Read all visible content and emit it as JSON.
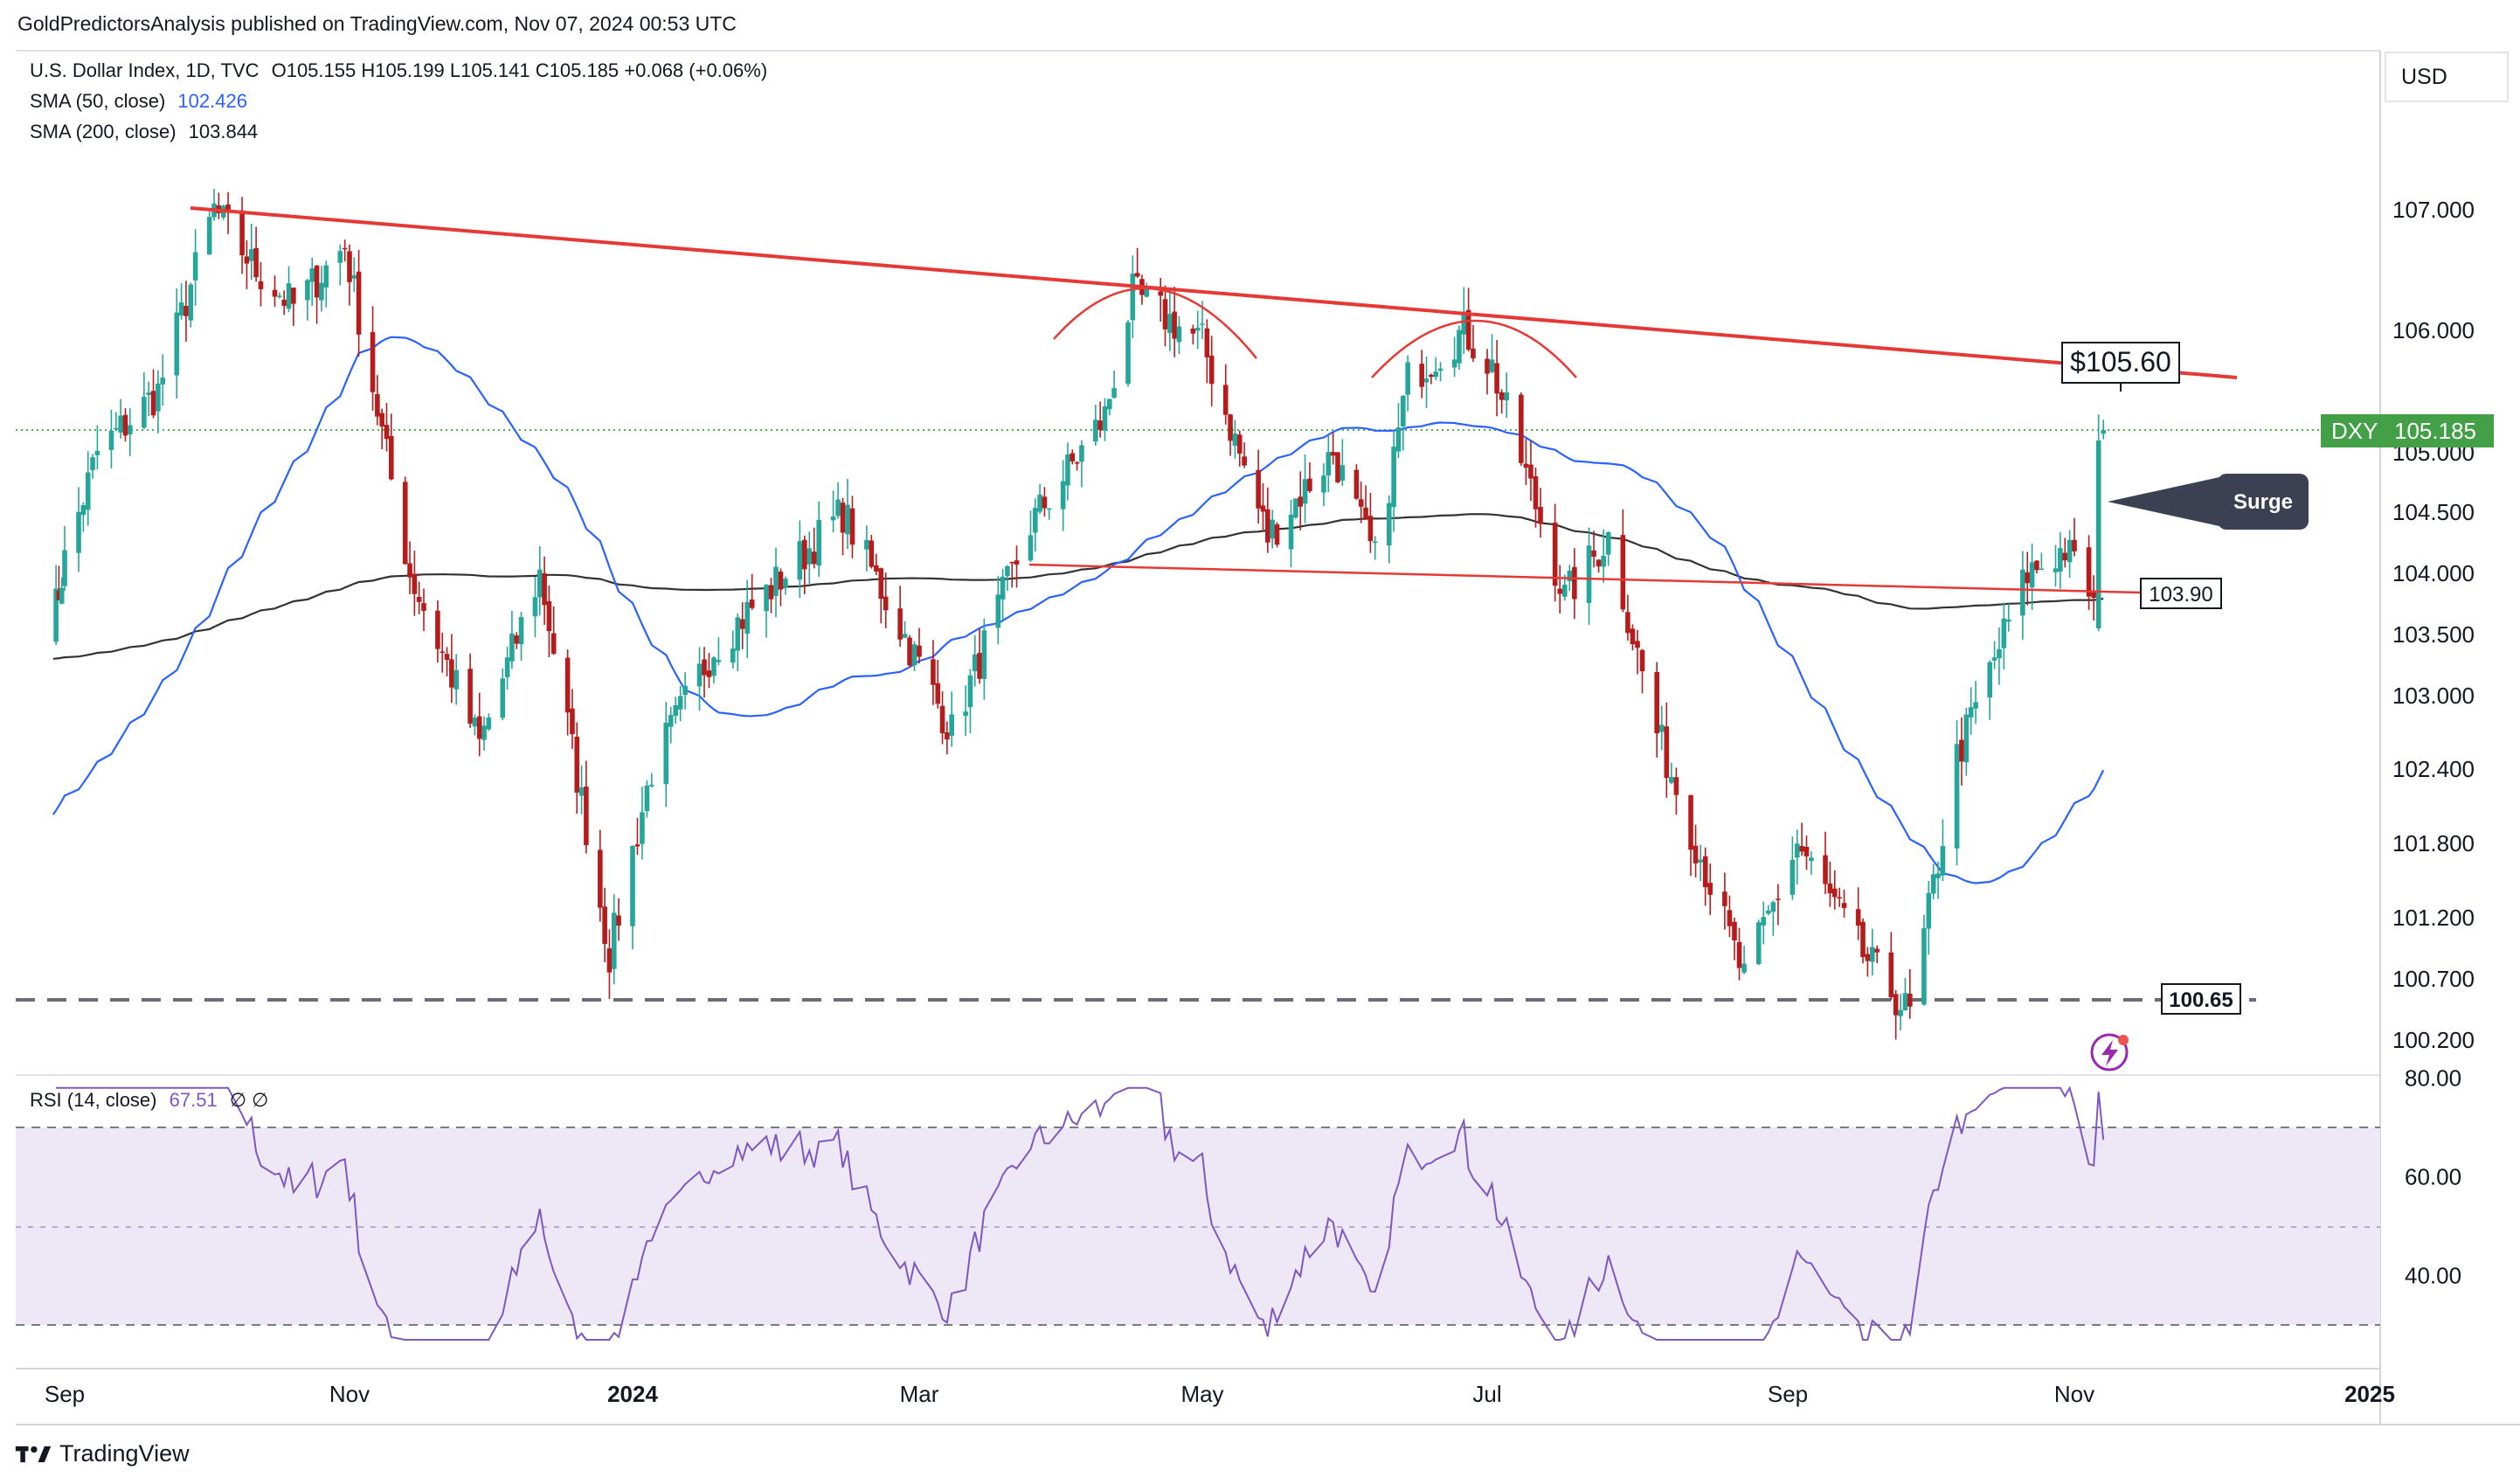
{
  "header": {
    "publisher_line": "GoldPredictorsAnalysis published on TradingView.com, Nov 07, 2024 00:53 UTC"
  },
  "legend": {
    "symbol_line": "U.S. Dollar Index, 1D, TVC",
    "ohlc": "O105.155  H105.199  L105.141  C105.185  +0.068 (+0.06%)",
    "sma50_label": "SMA (50, close)",
    "sma50_value": "102.426",
    "sma200_label": "SMA (200, close)",
    "sma200_value": "103.844",
    "rsi_label": "RSI (14, close)",
    "rsi_value": "67.51",
    "rsi_extra": "∅  ∅"
  },
  "currency": "USD",
  "footer": {
    "brand": "TradingView"
  },
  "colors": {
    "up": "#26a69a",
    "down": "#b71c1c",
    "sma50": "#2962ff",
    "sma200": "#333333",
    "resistance": "#e53935",
    "rsi": "#7e57c2",
    "rsi_band": "#ede7f6",
    "last_price": "#4caf50"
  },
  "annotations": {
    "resistance_label": "$105.60",
    "surge_label": "Surge",
    "neckline_label": "103.90",
    "support_label": "100.65",
    "last_symbol": "DXY",
    "last_value": "105.185"
  },
  "chart_data": [
    {
      "type": "candlestick",
      "title": "U.S. Dollar Index, 1D, TVC",
      "y_ticks": [
        "107.000",
        "106.000",
        "105.000",
        "104.500",
        "104.000",
        "103.500",
        "103.000",
        "102.400",
        "101.800",
        "101.200",
        "100.700",
        "100.200"
      ],
      "x_labels": [
        "Sep",
        "Nov",
        "2024",
        "Mar",
        "May",
        "Jul",
        "Sep",
        "Nov",
        "2025"
      ],
      "ylim": [
        100.0,
        107.5
      ],
      "grid": false,
      "anchors_close": [
        {
          "date": "2023-08-28",
          "close": 103.6
        },
        {
          "date": "2023-09-08",
          "close": 105.0
        },
        {
          "date": "2023-09-21",
          "close": 105.5
        },
        {
          "date": "2023-10-03",
          "close": 107.0
        },
        {
          "date": "2023-10-12",
          "close": 106.5
        },
        {
          "date": "2023-10-20",
          "close": 106.2
        },
        {
          "date": "2023-10-31",
          "close": 106.7
        },
        {
          "date": "2023-11-14",
          "close": 104.0
        },
        {
          "date": "2023-11-29",
          "close": 102.6
        },
        {
          "date": "2023-12-12",
          "close": 104.0
        },
        {
          "date": "2023-12-27",
          "close": 100.9
        },
        {
          "date": "2024-01-05",
          "close": 102.4
        },
        {
          "date": "2024-01-18",
          "close": 103.4
        },
        {
          "date": "2024-02-02",
          "close": 104.0
        },
        {
          "date": "2024-02-14",
          "close": 104.5
        },
        {
          "date": "2024-03-08",
          "close": 102.7
        },
        {
          "date": "2024-03-25",
          "close": 104.4
        },
        {
          "date": "2024-04-10",
          "close": 105.3
        },
        {
          "date": "2024-04-16",
          "close": 106.3
        },
        {
          "date": "2024-05-01",
          "close": 105.9
        },
        {
          "date": "2024-05-15",
          "close": 104.3
        },
        {
          "date": "2024-05-29",
          "close": 105.0
        },
        {
          "date": "2024-06-07",
          "close": 104.1
        },
        {
          "date": "2024-06-14",
          "close": 105.6
        },
        {
          "date": "2024-06-26",
          "close": 106.0
        },
        {
          "date": "2024-07-02",
          "close": 105.7
        },
        {
          "date": "2024-07-17",
          "close": 103.8
        },
        {
          "date": "2024-07-26",
          "close": 104.3
        },
        {
          "date": "2024-08-05",
          "close": 102.7
        },
        {
          "date": "2024-08-23",
          "close": 100.7
        },
        {
          "date": "2024-09-03",
          "close": 101.8
        },
        {
          "date": "2024-09-17",
          "close": 100.9
        },
        {
          "date": "2024-09-27",
          "close": 100.4
        },
        {
          "date": "2024-10-07",
          "close": 102.5
        },
        {
          "date": "2024-10-22",
          "close": 104.0
        },
        {
          "date": "2024-10-30",
          "close": 104.2
        },
        {
          "date": "2024-11-05",
          "close": 103.8
        },
        {
          "date": "2024-11-06",
          "close": 105.1
        },
        {
          "date": "2024-11-07",
          "close": 105.185
        }
      ],
      "last_candle": {
        "open": 105.155,
        "high": 105.199,
        "low": 105.141,
        "close": 105.185
      },
      "series": [
        {
          "name": "SMA (50, close)",
          "last": 102.426
        },
        {
          "name": "SMA (200, close)",
          "last": 103.844
        }
      ],
      "levels": {
        "resistance": 105.6,
        "neckline": 103.9,
        "support": 100.65,
        "last": 105.185
      }
    },
    {
      "type": "line",
      "title": "RSI (14, close)",
      "y_ticks": [
        "80.00",
        "60.00",
        "40.00"
      ],
      "ylim": [
        25,
        82
      ],
      "bands": [
        30,
        70
      ],
      "last": 67.51
    }
  ]
}
